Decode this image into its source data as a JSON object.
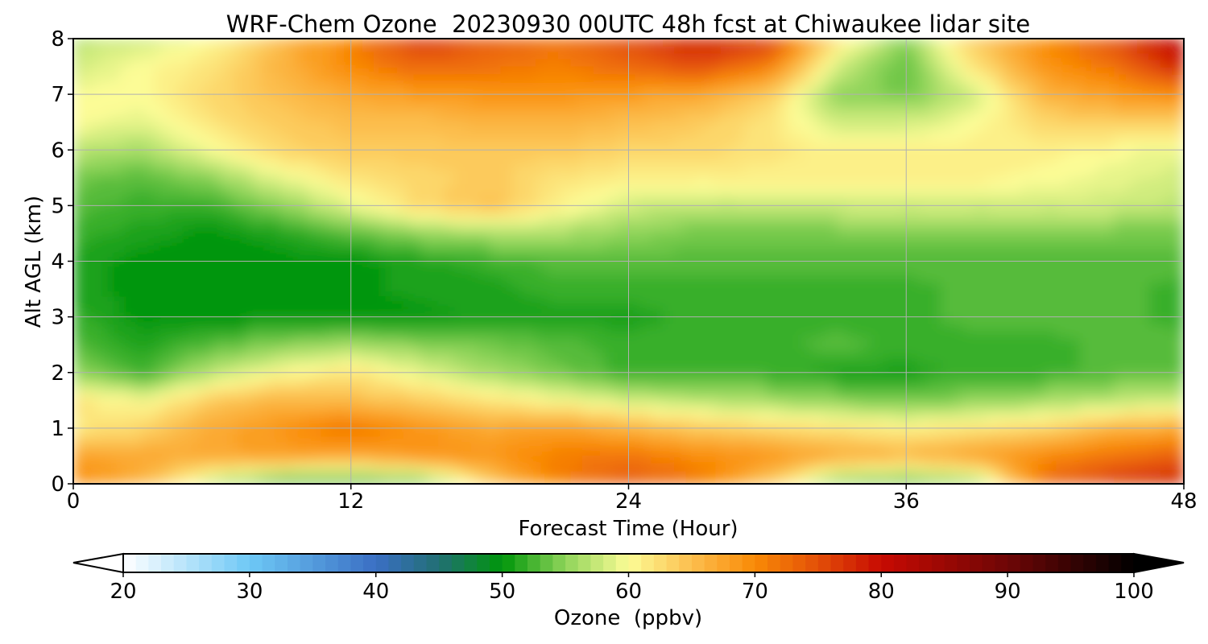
{
  "chart_data": {
    "type": "heatmap",
    "title": "WRF-Chem Ozone  20230930 00UTC 48h fcst at Chiwaukee lidar site",
    "xlabel": "Forecast Time (Hour)",
    "ylabel": "Alt AGL (km)",
    "xlim": [
      0,
      48
    ],
    "ylim": [
      0,
      8
    ],
    "xticks": [
      "0",
      "12",
      "24",
      "36",
      "48"
    ],
    "xtick_values": [
      0,
      12,
      24,
      36,
      48
    ],
    "yticks": [
      "0",
      "1",
      "2",
      "3",
      "4",
      "5",
      "6",
      "7",
      "8"
    ],
    "ytick_values": [
      0,
      1,
      2,
      3,
      4,
      5,
      6,
      7,
      8
    ],
    "grid": true,
    "x": [
      0,
      3,
      6,
      9,
      12,
      15,
      18,
      21,
      24,
      27,
      30,
      33,
      36,
      39,
      42,
      45,
      48
    ],
    "y": [
      0,
      0.5,
      1,
      1.5,
      2,
      2.5,
      3,
      3.5,
      4,
      4.5,
      5,
      5.5,
      6,
      6.5,
      7,
      7.5,
      8
    ],
    "z": [
      [
        70,
        66,
        56,
        51,
        51,
        52,
        63,
        71,
        74,
        72,
        64,
        53,
        52,
        54,
        73,
        77,
        79
      ],
      [
        68,
        67,
        67,
        68,
        67,
        69,
        69,
        71,
        72,
        70,
        69,
        67,
        66,
        68,
        70,
        72,
        74
      ],
      [
        61,
        63,
        67,
        69,
        72,
        69,
        67,
        68,
        66,
        64,
        63,
        62,
        61,
        62,
        63,
        66,
        67
      ],
      [
        62,
        60,
        64,
        66,
        65,
        64,
        62,
        60,
        58,
        57,
        56,
        55,
        54,
        55,
        56,
        57,
        58
      ],
      [
        55,
        52,
        57,
        60,
        62,
        59,
        56,
        54,
        52,
        52,
        52,
        51,
        51,
        52,
        52,
        53,
        53
      ],
      [
        53,
        51,
        53,
        55,
        56,
        55,
        54,
        53,
        52,
        52,
        52,
        53,
        52,
        52,
        52,
        53,
        53
      ],
      [
        52,
        50,
        50,
        50,
        50,
        50,
        51,
        51,
        51,
        52,
        52,
        52,
        52,
        53,
        53,
        53,
        52
      ],
      [
        51,
        50,
        50,
        50,
        50,
        51,
        51,
        52,
        52,
        52,
        52,
        52,
        52,
        53,
        53,
        53,
        52
      ],
      [
        51,
        50,
        50,
        50,
        50,
        51,
        52,
        53,
        53,
        53,
        53,
        53,
        53,
        53,
        53,
        53,
        53
      ],
      [
        52,
        51,
        50,
        51,
        53,
        55,
        56,
        56,
        55,
        54,
        54,
        54,
        54,
        54,
        54,
        54,
        54
      ],
      [
        53,
        52,
        52,
        55,
        59,
        63,
        65,
        61,
        58,
        57,
        57,
        58,
        58,
        58,
        58,
        58,
        57
      ],
      [
        54,
        53,
        55,
        59,
        62,
        63,
        64,
        62,
        61,
        61,
        61,
        61,
        61,
        61,
        60,
        59,
        58
      ],
      [
        57,
        56,
        60,
        63,
        64,
        64,
        64,
        64,
        63,
        63,
        62,
        61,
        61,
        61,
        61,
        60,
        59
      ],
      [
        60,
        59,
        62,
        64,
        65,
        65,
        66,
        66,
        65,
        64,
        62,
        58,
        58,
        60,
        63,
        64,
        63
      ],
      [
        60,
        60,
        63,
        65,
        67,
        68,
        69,
        69,
        68,
        67,
        64,
        55,
        54,
        58,
        66,
        68,
        70
      ],
      [
        58,
        60,
        62,
        66,
        70,
        73,
        72,
        71,
        73,
        75,
        71,
        58,
        53,
        62,
        69,
        72,
        79
      ],
      [
        57,
        58,
        60,
        65,
        71,
        77,
        74,
        72,
        75,
        79,
        77,
        62,
        55,
        64,
        70,
        75,
        82
      ]
    ],
    "colorbar": {
      "label": "Ozone  (ppbv)",
      "min": 20,
      "max": 100,
      "step": 1,
      "ticks": [
        "20",
        "30",
        "40",
        "50",
        "60",
        "70",
        "80",
        "90",
        "100"
      ],
      "tick_values": [
        20,
        30,
        40,
        50,
        60,
        70,
        80,
        90,
        100
      ],
      "extend": "both",
      "stops": [
        {
          "value": 20,
          "color": "#ffffff"
        },
        {
          "value": 30,
          "color": "#6ec8f5"
        },
        {
          "value": 40,
          "color": "#3a6fc4"
        },
        {
          "value": 45,
          "color": "#216f73"
        },
        {
          "value": 50,
          "color": "#00960a"
        },
        {
          "value": 55,
          "color": "#8fd45a"
        },
        {
          "value": 60,
          "color": "#fcfc96"
        },
        {
          "value": 65,
          "color": "#fcbe4e"
        },
        {
          "value": 70,
          "color": "#f98a06"
        },
        {
          "value": 75,
          "color": "#e34f08"
        },
        {
          "value": 80,
          "color": "#c70a02"
        },
        {
          "value": 90,
          "color": "#6e0606"
        },
        {
          "value": 100,
          "color": "#000000"
        }
      ],
      "under_color": "#ffffff",
      "over_color": "#000000"
    }
  }
}
